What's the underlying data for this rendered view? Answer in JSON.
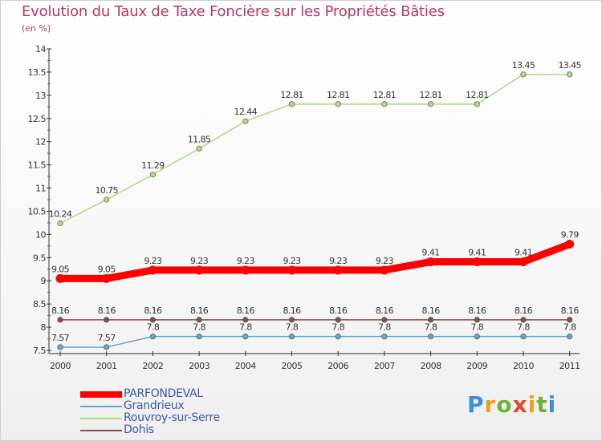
{
  "title": "Evolution du Taux de Taxe Foncière sur les Propriétés Bâties",
  "subtitle": "(en %)",
  "logo_text": "Proxiti",
  "chart_data": {
    "type": "line",
    "title": "Evolution du Taux de Taxe Foncière sur les Propriétés Bâties",
    "ylabel": "(en %)",
    "xlabel": "",
    "x": [
      "2000",
      "2001",
      "2002",
      "2003",
      "2004",
      "2005",
      "2006",
      "2007",
      "2008",
      "2009",
      "2010",
      "2011"
    ],
    "ylim": [
      7.5,
      14
    ],
    "yticks": [
      "7.5",
      "8",
      "8.5",
      "9",
      "9.5",
      "10",
      "10.5",
      "11",
      "11.5",
      "12",
      "12.5",
      "13",
      "13.5",
      "14"
    ],
    "grid": false,
    "legend_position": "bottom-left",
    "series": [
      {
        "name": "PARFONDEVAL",
        "color": "#ff0000",
        "values": [
          9.05,
          9.05,
          9.23,
          9.23,
          9.23,
          9.23,
          9.23,
          9.23,
          9.41,
          9.41,
          9.41,
          9.79
        ],
        "labels": [
          "9.05",
          "9.05",
          "9.23",
          "9.23",
          "9.23",
          "9.23",
          "9.23",
          "9.23",
          "9.41",
          "9.41",
          "9.41",
          "9.79"
        ]
      },
      {
        "name": "Grandrieux",
        "color": "#6a9fcf",
        "values": [
          7.57,
          7.57,
          7.8,
          7.8,
          7.8,
          7.8,
          7.8,
          7.8,
          7.8,
          7.8,
          7.8,
          7.8
        ],
        "labels": [
          "7.57",
          "7.57",
          "7.8",
          "7.8",
          "7.8",
          "7.8",
          "7.8",
          "7.8",
          "7.8",
          "7.8",
          "7.8",
          "7.8"
        ]
      },
      {
        "name": "Rouvroy-sur-Serre",
        "color": "#a8dc7c",
        "values": [
          10.24,
          10.75,
          11.29,
          11.85,
          12.44,
          12.81,
          12.81,
          12.81,
          12.81,
          12.81,
          13.45,
          13.45
        ],
        "labels": [
          "10.24",
          "10.75",
          "11.29",
          "11.85",
          "12.44",
          "12.81",
          "12.81",
          "12.81",
          "12.81",
          "12.81",
          "13.45",
          "13.45"
        ]
      },
      {
        "name": "Dohis",
        "color": "#8b4a4a",
        "values": [
          8.16,
          8.16,
          8.16,
          8.16,
          8.16,
          8.16,
          8.16,
          8.16,
          8.16,
          8.16,
          8.16,
          8.16
        ],
        "labels": [
          "8.16",
          "8.16",
          "8.16",
          "8.16",
          "8.16",
          "8.16",
          "8.16",
          "8.16",
          "8.16",
          "8.16",
          "8.16",
          "8.16"
        ]
      }
    ]
  }
}
